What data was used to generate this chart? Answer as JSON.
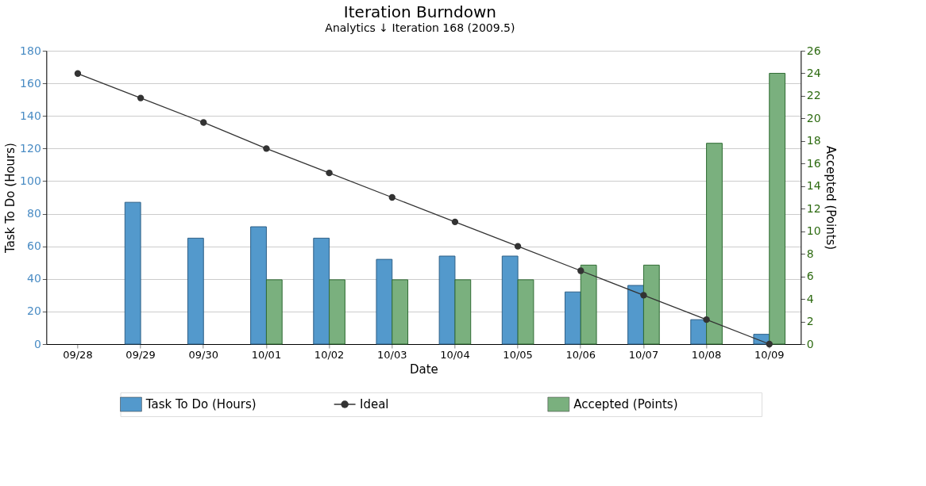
{
  "chart_data": {
    "type": "bar",
    "title": "Iteration Burndown",
    "subtitle": "Analytics ↓ Iteration 168 (2009.5)",
    "xlabel": "Date",
    "ylabel": "Task To Do (Hours)",
    "y2label": "Accepted (Points)",
    "categories": [
      "09/28",
      "09/29",
      "09/30",
      "10/01",
      "10/02",
      "10/03",
      "10/04",
      "10/05",
      "10/06",
      "10/07",
      "10/08",
      "10/09"
    ],
    "series": [
      {
        "name": "Task To Do (Hours)",
        "color": "#5399cc",
        "values": [
          null,
          87,
          65,
          72,
          65,
          52,
          54,
          54,
          32,
          36,
          15,
          6
        ]
      },
      {
        "name": "Ideal",
        "type": "line",
        "color": "#333333",
        "marker": "circle",
        "values": [
          166,
          151,
          136,
          120,
          105,
          90,
          75,
          60,
          45,
          30,
          15,
          0
        ]
      },
      {
        "name": "Accepted (Points)",
        "axis": "y2",
        "color": "#7ab07e",
        "values": [
          null,
          null,
          null,
          5.7,
          5.7,
          5.7,
          5.7,
          5.7,
          7,
          7,
          17.8,
          24
        ]
      }
    ],
    "ylim": [
      0,
      180
    ],
    "yticks": [
      0,
      20,
      40,
      60,
      80,
      100,
      120,
      140,
      160,
      180
    ],
    "y2lim": [
      0,
      26
    ],
    "y2ticks": [
      0,
      2,
      4,
      6,
      8,
      10,
      12,
      14,
      16,
      18,
      20,
      22,
      24,
      26
    ],
    "grid": "y",
    "legend": "bottom",
    "line_style": "solid"
  }
}
